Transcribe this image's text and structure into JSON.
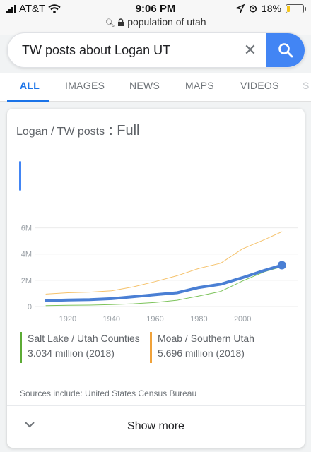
{
  "status_bar": {
    "carrier": "AT&T",
    "time": "9:06 PM",
    "battery": "18%",
    "battery_level": 0.18,
    "url": "population of utah"
  },
  "search": {
    "query": "TW posts about Logan UT",
    "clear_symbol": "✕"
  },
  "tabs": [
    {
      "label": "ALL",
      "active": true
    },
    {
      "label": "IMAGES",
      "active": false
    },
    {
      "label": "NEWS",
      "active": false
    },
    {
      "label": "MAPS",
      "active": false
    },
    {
      "label": "VIDEOS",
      "active": false
    },
    {
      "label": "S",
      "active": false
    }
  ],
  "card": {
    "title": "Logan / TW posts",
    "title_suffix": ": Full",
    "sources": "Sources include: United States Census Bureau",
    "show_more": "Show more"
  },
  "legend": [
    {
      "name": "Salt Lake / Utah Counties",
      "value": "3.034 million (2018)",
      "color": "#5cab35"
    },
    {
      "name": "Moab / Southern Utah",
      "value": "5.696 million (2018)",
      "color": "#f0a23a"
    }
  ],
  "chart_data": {
    "type": "line",
    "ylim": [
      0,
      7000000
    ],
    "xlim": [
      1910,
      2020
    ],
    "y_ticks": [
      0,
      2000000,
      4000000,
      6000000
    ],
    "y_tick_labels": [
      "0",
      "2M",
      "4M",
      "6M"
    ],
    "x_ticks": [
      1920,
      1940,
      1960,
      1980,
      2000
    ],
    "x_tick_labels": [
      "1920",
      "1940",
      "1960",
      "1980",
      "2000"
    ],
    "grid": true,
    "series": [
      {
        "name": "Salt Lake / Utah Counties",
        "color": "#7cc35a",
        "stroke": 1,
        "x": [
          1910,
          1920,
          1930,
          1940,
          1950,
          1960,
          1970,
          1980,
          1990,
          2000,
          2010,
          2018
        ],
        "values": [
          70000,
          90000,
          110000,
          150000,
          210000,
          310000,
          480000,
          800000,
          1150000,
          1950000,
          2650000,
          3034000
        ]
      },
      {
        "name": "Moab / Southern Utah",
        "color": "#f5c26b",
        "stroke": 1,
        "x": [
          1910,
          1920,
          1930,
          1940,
          1950,
          1960,
          1970,
          1980,
          1990,
          2000,
          2010,
          2018
        ],
        "values": [
          950000,
          1050000,
          1100000,
          1200000,
          1500000,
          1900000,
          2350000,
          2900000,
          3300000,
          4400000,
          5100000,
          5696000
        ]
      },
      {
        "name": "",
        "color": "#4a7fd4",
        "stroke": 4,
        "end_marker": true,
        "x": [
          1910,
          1920,
          1930,
          1940,
          1950,
          1960,
          1970,
          1980,
          1990,
          2000,
          2010,
          2018
        ],
        "values": [
          450000,
          500000,
          530000,
          600000,
          750000,
          900000,
          1050000,
          1450000,
          1700000,
          2200000,
          2750000,
          3150000
        ]
      }
    ]
  }
}
